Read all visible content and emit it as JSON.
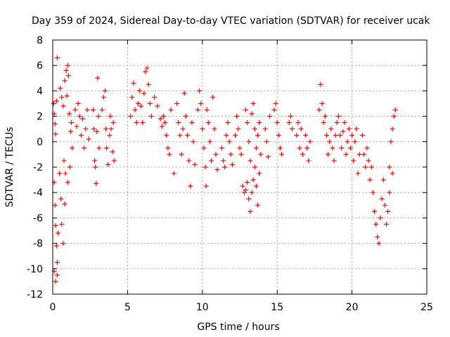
{
  "chart_data": {
    "type": "scatter",
    "title": "Day 359 of 2024, Sidereal Day-to-day VTEC variation (SDTVAR) for receiver ucak",
    "xlabel": "GPS time / hours",
    "ylabel": "SDTVAR / TECUs",
    "xlim": [
      0,
      25
    ],
    "ylim": [
      -12,
      8
    ],
    "xticks": [
      "0",
      "5",
      "10",
      "15",
      "20",
      "25"
    ],
    "yticks": [
      "-12",
      "-10",
      "-8",
      "-6",
      "-4",
      "-2",
      "0",
      "2",
      "4",
      "6",
      "8"
    ],
    "grid": true,
    "marker": "+",
    "series": [
      {
        "name": "SDTVAR",
        "color": "#ff0000",
        "points": [
          [
            0.05,
            3.0
          ],
          [
            0.1,
            2.2
          ],
          [
            0.15,
            1.4
          ],
          [
            0.2,
            0.6
          ],
          [
            0.25,
            3.2
          ],
          [
            0.1,
            -3.2
          ],
          [
            0.15,
            -5.0
          ],
          [
            0.2,
            -6.6
          ],
          [
            0.25,
            -8.2
          ],
          [
            0.3,
            -9.5
          ],
          [
            0.1,
            -10.2
          ],
          [
            0.2,
            -11.0
          ],
          [
            0.3,
            -10.5
          ],
          [
            0.35,
            -7.2
          ],
          [
            0.3,
            6.6
          ],
          [
            0.45,
            -2.5
          ],
          [
            0.55,
            -4.5
          ],
          [
            0.6,
            -6.5
          ],
          [
            0.7,
            -8.0
          ],
          [
            0.8,
            -4.9
          ],
          [
            0.85,
            -2.5
          ],
          [
            0.75,
            -1.5
          ],
          [
            0.5,
            4.2
          ],
          [
            0.6,
            3.5
          ],
          [
            0.7,
            2.8
          ],
          [
            0.8,
            4.8
          ],
          [
            0.9,
            5.6
          ],
          [
            1.0,
            6.0
          ],
          [
            1.05,
            5.2
          ],
          [
            0.95,
            3.6
          ],
          [
            1.1,
            2.2
          ],
          [
            1.2,
            0.8
          ],
          [
            1.3,
            -0.5
          ],
          [
            1.15,
            -2.0
          ],
          [
            1.0,
            -3.2
          ],
          [
            1.25,
            1.5
          ],
          [
            1.5,
            2.5
          ],
          [
            1.6,
            1.2
          ],
          [
            1.7,
            3.0
          ],
          [
            1.8,
            2.0
          ],
          [
            1.9,
            0.5
          ],
          [
            2.0,
            1.8
          ],
          [
            2.1,
            -0.5
          ],
          [
            2.2,
            1.0
          ],
          [
            2.3,
            2.5
          ],
          [
            2.4,
            0.2
          ],
          [
            2.7,
            2.5
          ],
          [
            2.75,
            1.0
          ],
          [
            2.8,
            -1.5
          ],
          [
            2.85,
            -2.0
          ],
          [
            2.9,
            -3.3
          ],
          [
            2.95,
            0.8
          ],
          [
            3.0,
            5.0
          ],
          [
            3.05,
            2.0
          ],
          [
            3.1,
            -0.5
          ],
          [
            3.3,
            2.5
          ],
          [
            3.4,
            3.5
          ],
          [
            3.5,
            4.0
          ],
          [
            3.55,
            1.0
          ],
          [
            3.6,
            -0.5
          ],
          [
            3.7,
            -1.8
          ],
          [
            3.8,
            0.5
          ],
          [
            3.85,
            2.0
          ],
          [
            3.9,
            1.0
          ],
          [
            4.0,
            -0.8
          ],
          [
            4.05,
            1.5
          ],
          [
            4.1,
            -1.5
          ],
          [
            5.2,
            2.0
          ],
          [
            5.3,
            3.5
          ],
          [
            5.4,
            4.6
          ],
          [
            5.5,
            2.5
          ],
          [
            5.6,
            1.5
          ],
          [
            5.7,
            3.0
          ],
          [
            5.8,
            4.0
          ],
          [
            5.9,
            2.8
          ],
          [
            6.0,
            1.5
          ],
          [
            6.1,
            3.8
          ],
          [
            6.2,
            5.5
          ],
          [
            6.3,
            5.8
          ],
          [
            6.4,
            4.5
          ],
          [
            6.5,
            3.0
          ],
          [
            6.6,
            2.0
          ],
          [
            6.8,
            3.5
          ],
          [
            7.0,
            2.8
          ],
          [
            7.2,
            1.8
          ],
          [
            7.3,
            1.2
          ],
          [
            7.4,
            2.0
          ],
          [
            7.5,
            1.5
          ],
          [
            7.6,
            0.5
          ],
          [
            7.7,
            -0.5
          ],
          [
            7.8,
            -1.0
          ],
          [
            7.9,
            2.5
          ],
          [
            8.1,
            -2.5
          ],
          [
            8.3,
            3.0
          ],
          [
            8.4,
            1.5
          ],
          [
            8.5,
            0.5
          ],
          [
            8.6,
            -1.0
          ],
          [
            8.7,
            1.0
          ],
          [
            8.8,
            3.8
          ],
          [
            8.9,
            2.0
          ],
          [
            9.0,
            0.5
          ],
          [
            9.1,
            -1.5
          ],
          [
            9.2,
            -3.5
          ],
          [
            9.3,
            1.5
          ],
          [
            9.4,
            0.0
          ],
          [
            9.5,
            -1.8
          ],
          [
            9.7,
            2.5
          ],
          [
            9.8,
            4.0
          ],
          [
            9.9,
            3.0
          ],
          [
            10.0,
            1.0
          ],
          [
            10.1,
            -0.5
          ],
          [
            10.2,
            -2.0
          ],
          [
            10.25,
            -3.5
          ],
          [
            10.3,
            2.5
          ],
          [
            10.4,
            1.5
          ],
          [
            10.5,
            0.0
          ],
          [
            10.6,
            -1.5
          ],
          [
            10.7,
            3.5
          ],
          [
            10.8,
            1.0
          ],
          [
            10.9,
            -1.0
          ],
          [
            11.0,
            -2.2
          ],
          [
            11.3,
            -0.5
          ],
          [
            11.4,
            -1.5
          ],
          [
            11.5,
            -2.0
          ],
          [
            11.6,
            0.5
          ],
          [
            11.7,
            1.5
          ],
          [
            11.8,
            0.0
          ],
          [
            11.9,
            -1.0
          ],
          [
            12.0,
            -1.8
          ],
          [
            12.2,
            0.5
          ],
          [
            12.3,
            2.0
          ],
          [
            12.4,
            1.0
          ],
          [
            12.5,
            -0.5
          ],
          [
            12.6,
            -1.0
          ],
          [
            12.7,
            -3.5
          ],
          [
            12.8,
            -4.0
          ],
          [
            12.9,
            -3.8
          ],
          [
            13.0,
            -3.2
          ],
          [
            13.1,
            -4.5
          ],
          [
            13.2,
            -5.5
          ],
          [
            13.3,
            -4.0
          ],
          [
            13.4,
            -3.0
          ],
          [
            13.5,
            -2.0
          ],
          [
            13.6,
            -3.5
          ],
          [
            13.7,
            -5.0
          ],
          [
            13.8,
            -2.5
          ],
          [
            13.9,
            -1.0
          ],
          [
            12.9,
            2.5
          ],
          [
            13.0,
            1.5
          ],
          [
            13.1,
            0.0
          ],
          [
            13.2,
            -1.5
          ],
          [
            13.3,
            2.2
          ],
          [
            13.4,
            3.0
          ],
          [
            13.5,
            1.0
          ],
          [
            13.6,
            -0.5
          ],
          [
            13.7,
            0.5
          ],
          [
            13.8,
            1.5
          ],
          [
            14.2,
            1.0
          ],
          [
            14.3,
            0.0
          ],
          [
            14.4,
            -1.2
          ],
          [
            14.5,
            2.0
          ],
          [
            14.8,
            2.5
          ],
          [
            14.9,
            3.0
          ],
          [
            15.0,
            1.5
          ],
          [
            15.1,
            0.5
          ],
          [
            15.2,
            -0.5
          ],
          [
            15.3,
            -1.0
          ],
          [
            15.8,
            1.5
          ],
          [
            15.9,
            2.0
          ],
          [
            16.0,
            1.0
          ],
          [
            16.3,
            0.5
          ],
          [
            16.4,
            1.5
          ],
          [
            16.5,
            -0.5
          ],
          [
            16.6,
            1.0
          ],
          [
            16.7,
            -1.0
          ],
          [
            16.9,
            0.5
          ],
          [
            17.0,
            -0.5
          ],
          [
            17.1,
            -1.5
          ],
          [
            17.2,
            0.0
          ],
          [
            17.8,
            2.5
          ],
          [
            17.9,
            4.5
          ],
          [
            18.0,
            3.0
          ],
          [
            18.1,
            1.5
          ],
          [
            18.2,
            2.0
          ],
          [
            18.3,
            0.5
          ],
          [
            18.4,
            -1.0
          ],
          [
            18.5,
            0.0
          ],
          [
            18.6,
            1.0
          ],
          [
            18.7,
            -0.5
          ],
          [
            18.8,
            -1.5
          ],
          [
            18.9,
            0.5
          ],
          [
            19.0,
            1.5
          ],
          [
            19.1,
            2.0
          ],
          [
            19.2,
            0.5
          ],
          [
            19.3,
            -0.5
          ],
          [
            19.4,
            0.8
          ],
          [
            19.5,
            1.5
          ],
          [
            19.6,
            -1.0
          ],
          [
            19.7,
            0.0
          ],
          [
            19.8,
            1.0
          ],
          [
            19.9,
            -0.5
          ],
          [
            20.0,
            0.5
          ],
          [
            20.1,
            -1.5
          ],
          [
            20.2,
            0.0
          ],
          [
            20.3,
            1.0
          ],
          [
            20.4,
            -2.5
          ],
          [
            20.5,
            -1.0
          ],
          [
            20.7,
            0.5
          ],
          [
            20.8,
            -1.0
          ],
          [
            20.9,
            -2.0
          ],
          [
            21.0,
            -0.5
          ],
          [
            21.1,
            -1.5
          ],
          [
            21.2,
            -3.0
          ],
          [
            21.3,
            -2.0
          ],
          [
            21.4,
            -4.0
          ],
          [
            21.5,
            -5.5
          ],
          [
            21.6,
            -6.5
          ],
          [
            21.7,
            -7.5
          ],
          [
            21.8,
            -8.0
          ],
          [
            21.9,
            -6.0
          ],
          [
            22.0,
            -4.5
          ],
          [
            22.1,
            -3.0
          ],
          [
            22.2,
            -5.0
          ],
          [
            22.3,
            -6.5
          ],
          [
            22.4,
            -5.5
          ],
          [
            22.5,
            -4.0
          ],
          [
            22.5,
            -2.0
          ],
          [
            22.6,
            0.0
          ],
          [
            22.7,
            1.0
          ],
          [
            22.8,
            2.0
          ],
          [
            22.9,
            2.5
          ],
          [
            22.7,
            -2.5
          ]
        ]
      }
    ]
  }
}
